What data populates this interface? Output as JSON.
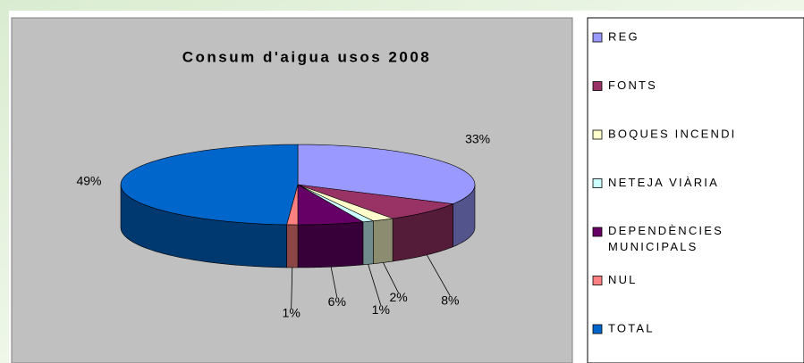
{
  "chart_data": {
    "type": "pie3d",
    "title": "Consum d'aigua usos 2008",
    "categories": [
      "REG",
      "FONTS",
      "BOQUES INCENDI",
      "NETEJA VIÀRIA",
      "DEPENDÈNCIES MUNICIPALS",
      "NUL",
      "TOTAL"
    ],
    "values": [
      33,
      8,
      2,
      1,
      6,
      1,
      49
    ],
    "value_labels": [
      "33%",
      "8%",
      "2%",
      "1%",
      "6%",
      "1%",
      "49%"
    ],
    "colors": [
      "#9999ff",
      "#993366",
      "#ffffcc",
      "#ccffff",
      "#660066",
      "#ff8080",
      "#0066cc"
    ],
    "legend": "right"
  }
}
